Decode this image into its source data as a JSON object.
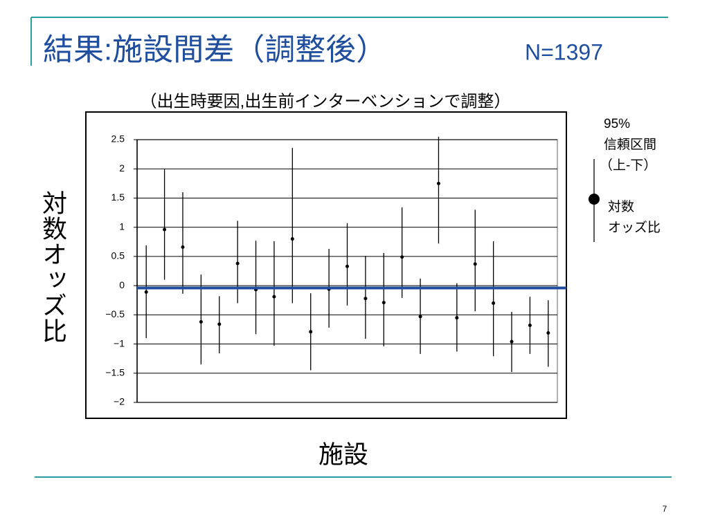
{
  "header": {
    "title": "結果:施設間差（調整後）",
    "n_label": "N=1397",
    "page_number": "7"
  },
  "chart_data": {
    "type": "errorbar",
    "subtitle": "（出生時要因,出生前インターベンションで調整）",
    "y_label": "対数オッズ比",
    "x_label": "施設",
    "categories": [
      null,
      null,
      null,
      null,
      null,
      null,
      null,
      null,
      null,
      null,
      null,
      null,
      null,
      null,
      null,
      null,
      null,
      null,
      null,
      null,
      null,
      null,
      null
    ],
    "values": [
      -0.11,
      0.96,
      0.66,
      -0.62,
      -0.66,
      0.38,
      -0.07,
      -0.19,
      0.8,
      -0.79,
      -0.06,
      0.33,
      -0.22,
      -0.29,
      0.49,
      -0.53,
      1.75,
      -0.55,
      0.37,
      -0.3,
      -0.96,
      -0.68,
      -0.81
    ],
    "upper": [
      0.69,
      2.0,
      1.6,
      0.19,
      -0.18,
      1.11,
      0.77,
      0.76,
      2.36,
      -0.13,
      0.63,
      1.07,
      0.51,
      0.56,
      1.34,
      0.12,
      2.55,
      0.04,
      1.3,
      0.76,
      -0.45,
      -0.19,
      -0.25
    ],
    "lower": [
      -0.9,
      0.1,
      -0.14,
      -1.35,
      -1.16,
      -0.3,
      -0.83,
      -1.03,
      -0.3,
      -1.45,
      -0.72,
      -0.34,
      -0.91,
      -1.04,
      -0.21,
      -1.17,
      0.72,
      -1.13,
      -0.44,
      -1.21,
      -1.48,
      -1.17,
      -1.39
    ],
    "color": "#000000",
    "reference_line": {
      "value": -0.04,
      "color": "#1f4e9e"
    },
    "ylim": [
      -2,
      2.5
    ],
    "yticks": [
      2.5,
      2,
      1.5,
      1,
      0.5,
      0,
      {
        "value": -0.5,
        "label": "−0.5"
      },
      {
        "value": -1,
        "label": "−1"
      },
      {
        "value": -1.5,
        "label": "−1.5"
      },
      {
        "value": -2,
        "label": "−2"
      }
    ],
    "grid": true,
    "legend": {
      "interval": [
        "95%",
        "信頼区間",
        "（上-下）"
      ],
      "estimate": [
        "対数",
        "オッズ比"
      ]
    }
  }
}
